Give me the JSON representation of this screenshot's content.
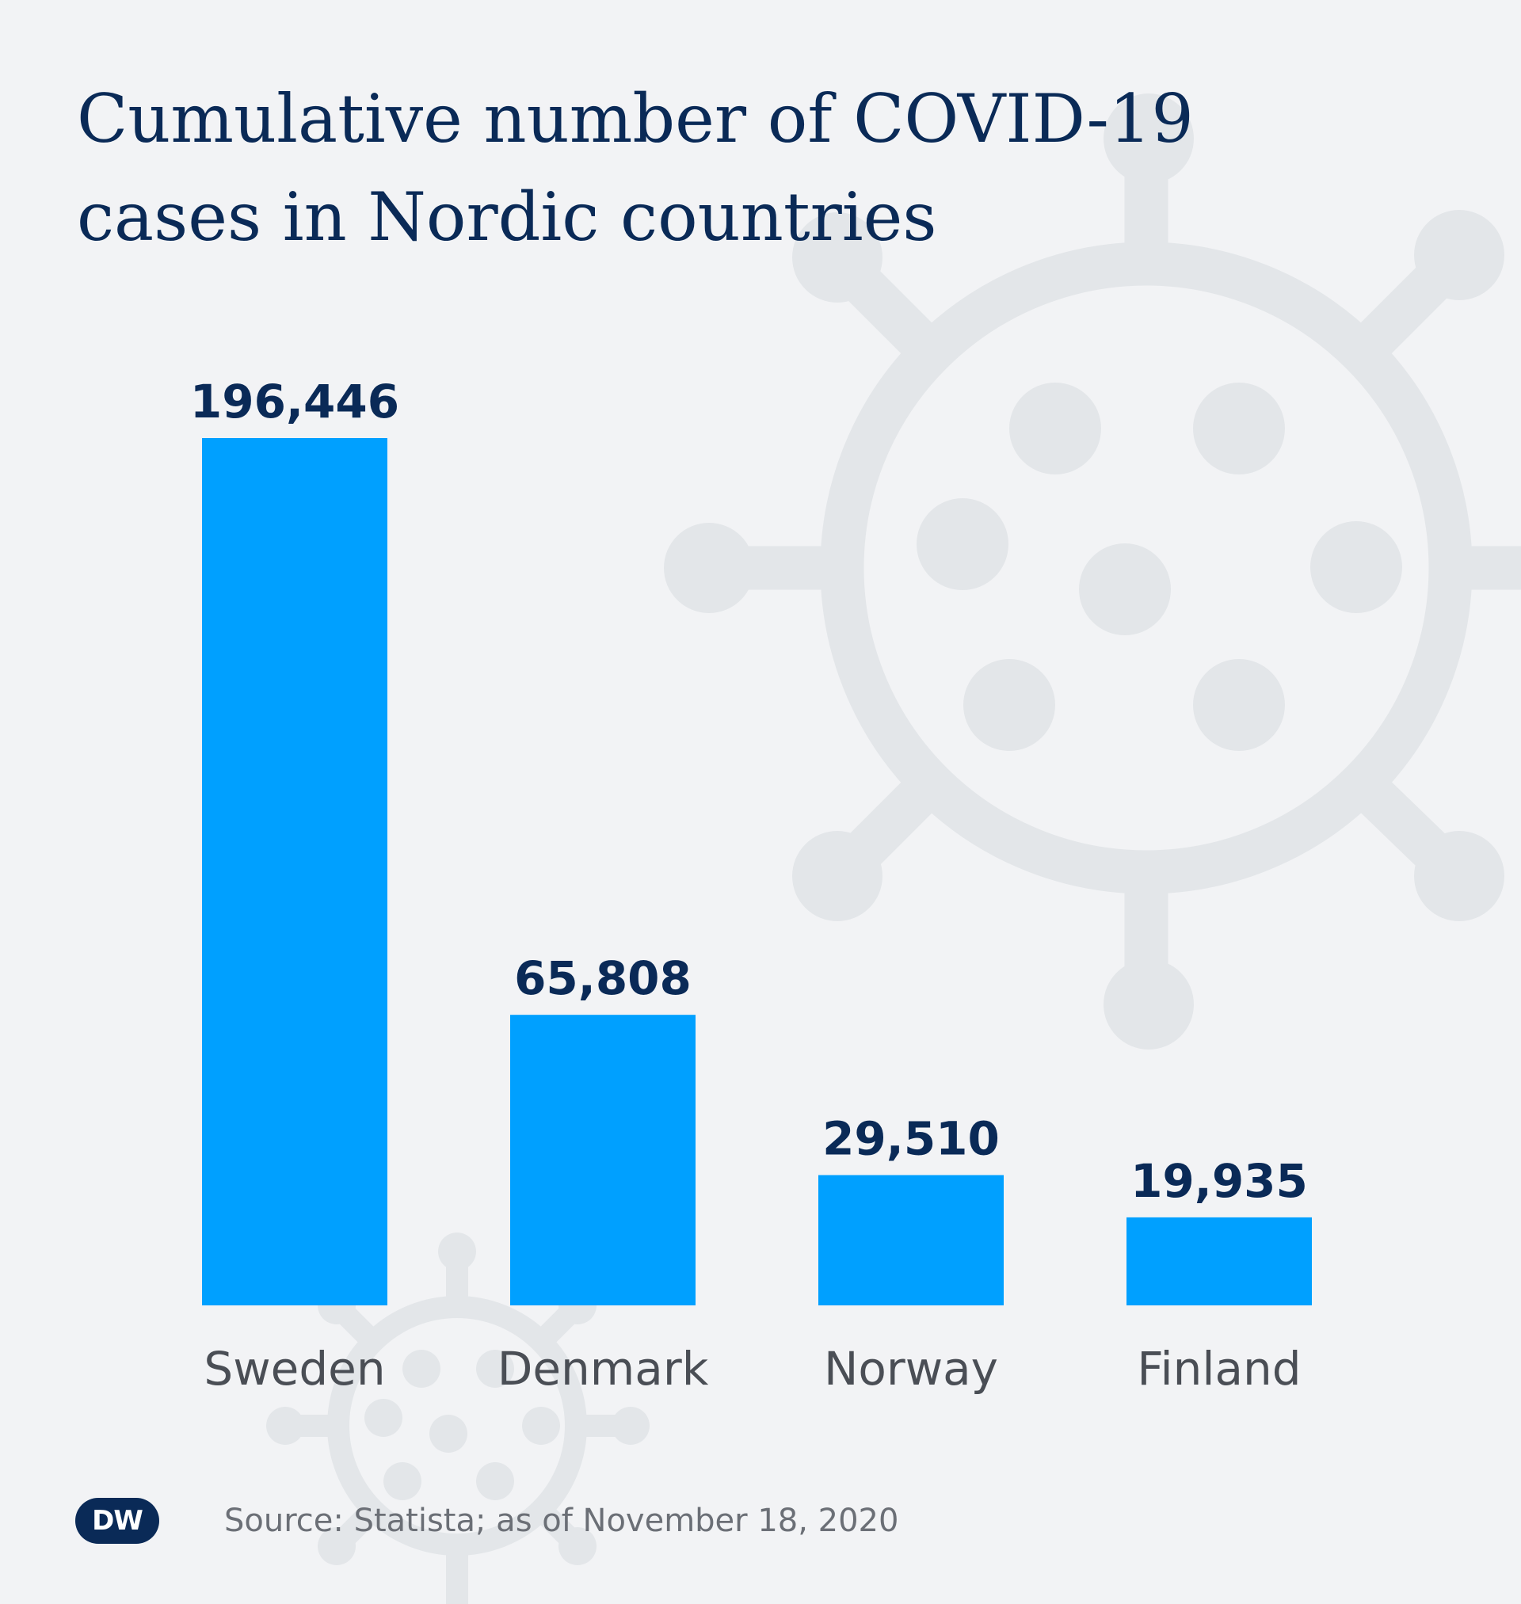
{
  "title": "Cumulative number of COVID-19 cases in Nordic countries",
  "source": "Source: Statista; as of November 18, 2020",
  "logo_text": "DW",
  "colors": {
    "background": "#f2f3f5",
    "bar": "#00a0ff",
    "title": "#0a2a57",
    "decoration": "#e3e6e9"
  },
  "chart_data": {
    "type": "bar",
    "title": "Cumulative number of COVID-19 cases in Nordic countries",
    "categories": [
      "Sweden",
      "Denmark",
      "Norway",
      "Finland"
    ],
    "values": [
      196446,
      65808,
      29510,
      19935
    ],
    "value_labels": [
      "196,446",
      "65,808",
      "29,510",
      "19,935"
    ],
    "xlabel": "",
    "ylabel": "",
    "ylim": [
      0,
      196446
    ],
    "grid": false,
    "legend": "none"
  }
}
